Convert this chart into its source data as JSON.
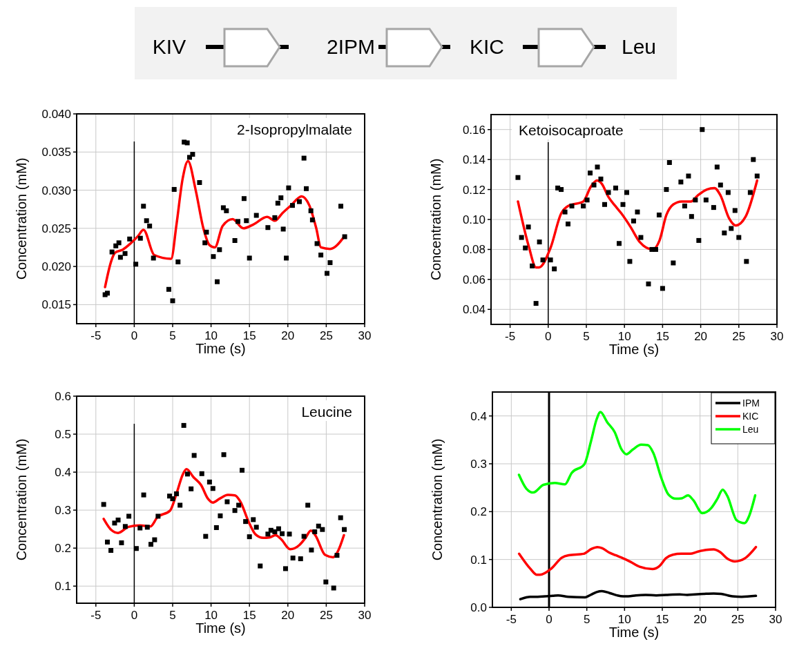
{
  "chart_data": [
    {
      "type": "other",
      "annotations": [
        "KIV",
        "2IPM",
        "KIC",
        "Leu"
      ]
    },
    {
      "type": "scatter",
      "title": "2-Isopropylmalate",
      "xlabel": "Time (s)",
      "ylabel": "Concentration (mM)",
      "xlim": [
        -7.5,
        30
      ],
      "ylim": [
        0.0125,
        0.04
      ],
      "xticks": [
        -5,
        0,
        5,
        10,
        15,
        20,
        25,
        30
      ],
      "yticks": [
        0.015,
        {
          "value": 0.02,
          "label": "0.020"
        },
        0.025,
        {
          "value": 0.03,
          "label": "0.030"
        },
        0.035,
        {
          "value": 0.04,
          "label": "0.040"
        }
      ],
      "grid": true,
      "legend": false,
      "ref_lines": [
        {
          "axis": "x",
          "value": 0,
          "color": "#000000"
        }
      ],
      "series": [
        {
          "type": "scatter",
          "marker": "square",
          "color": "#000000",
          "x": [
            -3.8,
            -3.5,
            -2.9,
            -2.4,
            -2,
            -1.8,
            -1.2,
            -0.6,
            0.2,
            0.8,
            1.2,
            1.6,
            2,
            2.5,
            4.5,
            5,
            5.2,
            5.7,
            6.5,
            6.9,
            7.2,
            7.6,
            8.5,
            9.2,
            9.4,
            10.3,
            10.8,
            11.1,
            11.6,
            12,
            13.1,
            13.5,
            14.3,
            14.6,
            15,
            15.9,
            17.4,
            18.3,
            18.7,
            19.1,
            19.4,
            19.8,
            20.1,
            20.6,
            21.5,
            22.1,
            22.4,
            23,
            23.2,
            23.8,
            24.3,
            25.1,
            25.5,
            26.9,
            27.4
          ],
          "values": [
            0.0163,
            0.0165,
            0.0219,
            0.0227,
            0.0231,
            0.0212,
            0.0217,
            0.0236,
            0.0203,
            0.0237,
            0.0279,
            0.026,
            0.0253,
            0.0211,
            0.017,
            0.0155,
            0.0301,
            0.0206,
            0.0363,
            0.0362,
            0.0343,
            0.0347,
            0.031,
            0.0231,
            0.0245,
            0.0213,
            0.018,
            0.0222,
            0.0277,
            0.0273,
            0.0234,
            0.0259,
            0.0289,
            0.026,
            0.0211,
            0.0267,
            0.0251,
            0.0264,
            0.0283,
            0.029,
            0.0249,
            0.0211,
            0.0303,
            0.028,
            0.0285,
            0.0342,
            0.0302,
            0.0273,
            0.0261,
            0.023,
            0.0215,
            0.0191,
            0.0205,
            0.0279,
            0.0239
          ]
        },
        {
          "type": "line",
          "color": "#ff0000",
          "x": [
            -3.8,
            -3,
            -2.5,
            -1.5,
            -0.5,
            0.5,
            1.2,
            2.6,
            4.8,
            5.5,
            6.3,
            7,
            8,
            9,
            9.8,
            10.5,
            11.5,
            12.8,
            14.2,
            15.5,
            17.3,
            18.3,
            19.3,
            20.4,
            21.8,
            22.8,
            23.7,
            24.3,
            25.5,
            27.4
          ],
          "values": [
            0.0173,
            0.0207,
            0.0218,
            0.0222,
            0.023,
            0.024,
            0.0248,
            0.0215,
            0.021,
            0.0255,
            0.0315,
            0.0338,
            0.03,
            0.025,
            0.0228,
            0.0225,
            0.0253,
            0.0262,
            0.025,
            0.0255,
            0.0265,
            0.026,
            0.027,
            0.028,
            0.0292,
            0.028,
            0.025,
            0.0225,
            0.0223,
            0.024
          ]
        }
      ]
    },
    {
      "type": "scatter",
      "title": "Ketoisocaproate",
      "xlabel": "Time (s)",
      "ylabel": "Concentration (mM)",
      "xlim": [
        -7.5,
        30
      ],
      "ylim": [
        0.03,
        0.17
      ],
      "xticks": [
        -5,
        0,
        5,
        10,
        15,
        20,
        25,
        30
      ],
      "yticks": [
        0.04,
        0.06,
        0.08,
        {
          "value": 0.1,
          "label": "0.10"
        },
        0.12,
        0.14,
        0.16
      ],
      "grid": true,
      "legend": false,
      "ref_lines": [
        {
          "axis": "x",
          "value": 0,
          "color": "#000000"
        }
      ],
      "series": [
        {
          "type": "scatter",
          "marker": "square",
          "color": "#000000",
          "x": [
            -3.97,
            -3.5,
            -3,
            -2.6,
            -2.1,
            -1.6,
            -1.15,
            -0.7,
            0.3,
            0.8,
            1.25,
            1.7,
            2.2,
            2.6,
            3.1,
            4.6,
            5.1,
            5.5,
            6,
            6.45,
            6.9,
            7.4,
            7.9,
            8.85,
            9.3,
            9.8,
            10.3,
            10.7,
            11.2,
            11.7,
            12.15,
            13.15,
            13.6,
            14.1,
            14.55,
            15,
            15.5,
            15.9,
            16.4,
            17.4,
            17.9,
            18.4,
            18.8,
            19.3,
            19.75,
            20.2,
            20.7,
            21.7,
            22.15,
            22.6,
            23.1,
            23.6,
            24,
            24.5,
            25,
            26,
            26.5,
            26.9,
            27.4
          ],
          "values": [
            0.128,
            0.088,
            0.081,
            0.095,
            0.069,
            0.044,
            0.085,
            0.073,
            0.073,
            0.067,
            0.121,
            0.12,
            0.105,
            0.097,
            0.109,
            0.109,
            0.113,
            0.131,
            0.123,
            0.135,
            0.127,
            0.11,
            0.118,
            0.121,
            0.084,
            0.11,
            0.118,
            0.072,
            0.099,
            0.105,
            0.088,
            0.057,
            0.08,
            0.08,
            0.103,
            0.054,
            0.12,
            0.138,
            0.071,
            0.125,
            0.109,
            0.129,
            0.102,
            0.113,
            0.086,
            0.16,
            0.113,
            0.108,
            0.135,
            0.123,
            0.091,
            0.118,
            0.094,
            0.106,
            0.088,
            0.072,
            0.118,
            0.14,
            0.129
          ]
        },
        {
          "type": "line",
          "color": "#ff0000",
          "x": [
            -3.97,
            -2.55,
            -1.6,
            -1.2,
            0.3,
            1.7,
            2.6,
            4.6,
            5.6,
            6.4,
            7,
            7.9,
            8.8,
            9.6,
            10.8,
            12,
            13.7,
            14.6,
            15.5,
            16.4,
            17.5,
            18.7,
            19.6,
            20.8,
            21.8,
            22.6,
            23.7,
            24.6,
            25.9,
            27.4
          ],
          "values": [
            0.112,
            0.082,
            0.068,
            0.068,
            0.081,
            0.104,
            0.109,
            0.112,
            0.122,
            0.126,
            0.124,
            0.115,
            0.109,
            0.104,
            0.095,
            0.085,
            0.08,
            0.086,
            0.103,
            0.11,
            0.112,
            0.112,
            0.116,
            0.12,
            0.121,
            0.116,
            0.101,
            0.096,
            0.102,
            0.126
          ]
        }
      ]
    },
    {
      "type": "scatter",
      "title": "Leucine",
      "xlabel": "Time (s)",
      "ylabel": "Concentration (mM)",
      "xlim": [
        -7.5,
        30
      ],
      "ylim": [
        0.055,
        0.6
      ],
      "xticks": [
        -5,
        0,
        5,
        10,
        15,
        20,
        25,
        30
      ],
      "yticks": [
        0.1,
        0.2,
        0.3,
        0.4,
        0.5,
        0.6
      ],
      "grid": true,
      "legend": false,
      "ref_lines": [
        {
          "axis": "x",
          "value": 0,
          "color": "#000000"
        }
      ],
      "series": [
        {
          "type": "scatter",
          "marker": "square",
          "color": "#000000",
          "x": [
            -3.98,
            -3.5,
            -3.04,
            -2.56,
            -2.1,
            -1.66,
            -1.17,
            -0.7,
            0.27,
            0.75,
            1.23,
            1.7,
            2.17,
            2.65,
            3.1,
            4.6,
            5,
            5.5,
            5.96,
            6.45,
            6.93,
            7.4,
            7.8,
            8.8,
            9.3,
            9.8,
            10.24,
            10.7,
            11.2,
            11.66,
            12.1,
            13.1,
            13.6,
            14.04,
            14.5,
            15,
            15.5,
            15.9,
            16.4,
            17.4,
            17.8,
            18.3,
            18.8,
            19.26,
            19.7,
            20.2,
            20.66,
            21.66,
            22.1,
            22.6,
            23.07,
            23.5,
            24,
            24.5,
            24.95,
            25.97,
            26.4,
            26.87,
            27.35
          ],
          "values": [
            0.315,
            0.216,
            0.194,
            0.266,
            0.274,
            0.214,
            0.257,
            0.284,
            0.199,
            0.253,
            0.34,
            0.255,
            0.21,
            0.222,
            0.284,
            0.337,
            0.33,
            0.343,
            0.313,
            0.523,
            0.395,
            0.356,
            0.444,
            0.396,
            0.231,
            0.374,
            0.357,
            0.254,
            0.285,
            0.446,
            0.322,
            0.299,
            0.313,
            0.405,
            0.27,
            0.23,
            0.275,
            0.255,
            0.153,
            0.237,
            0.247,
            0.243,
            0.251,
            0.238,
            0.146,
            0.237,
            0.174,
            0.172,
            0.231,
            0.313,
            0.195,
            0.243,
            0.258,
            0.249,
            0.111,
            0.095,
            0.181,
            0.28,
            0.249
          ]
        },
        {
          "type": "line",
          "color": "#ff0000",
          "x": [
            -3.98,
            -3,
            -2.1,
            -0.75,
            0.75,
            2.1,
            3,
            4.67,
            5.57,
            6.3,
            6.8,
            7.7,
            8.7,
            9.6,
            10.24,
            11.1,
            12.2,
            13.1,
            13.8,
            14.9,
            15.8,
            16.8,
            17.6,
            18.4,
            19.1,
            20.3,
            21.5,
            22.3,
            23,
            23.6,
            24.85,
            25.9,
            26.5,
            27.3
          ],
          "values": [
            0.277,
            0.248,
            0.24,
            0.256,
            0.26,
            0.257,
            0.281,
            0.299,
            0.348,
            0.393,
            0.408,
            0.387,
            0.366,
            0.33,
            0.32,
            0.33,
            0.34,
            0.339,
            0.323,
            0.269,
            0.236,
            0.227,
            0.228,
            0.234,
            0.224,
            0.197,
            0.208,
            0.227,
            0.246,
            0.233,
            0.182,
            0.176,
            0.191,
            0.234
          ]
        }
      ]
    },
    {
      "type": "line",
      "xlabel": "Time (s)",
      "ylabel": "Concentration (mM)",
      "xlim": [
        -7.5,
        30
      ],
      "ylim": [
        0,
        0.45
      ],
      "xticks": [
        -5,
        0,
        5,
        10,
        15,
        20,
        25,
        30
      ],
      "yticks": [
        {
          "value": 0,
          "label": "0.0"
        },
        0.1,
        0.2,
        0.3,
        0.4
      ],
      "grid": true,
      "legend": "top right",
      "ref_lines": [
        {
          "axis": "x",
          "value": 0,
          "color": "#000000"
        }
      ],
      "series": [
        {
          "name": "IPM",
          "type": "line",
          "color": "#000000",
          "x": [
            -3.8,
            -3,
            -2.5,
            -1.5,
            -0.5,
            0.5,
            1.2,
            2.6,
            4.8,
            5.5,
            6.3,
            7,
            8,
            9,
            9.8,
            10.5,
            11.5,
            12.8,
            14.2,
            15.5,
            17.3,
            18.3,
            19.3,
            20.4,
            21.8,
            22.8,
            23.7,
            24.3,
            25.5,
            27.4
          ],
          "values": [
            0.017,
            0.021,
            0.022,
            0.022,
            0.023,
            0.024,
            0.025,
            0.022,
            0.021,
            0.026,
            0.032,
            0.034,
            0.03,
            0.025,
            0.023,
            0.023,
            0.025,
            0.026,
            0.025,
            0.026,
            0.027,
            0.026,
            0.027,
            0.028,
            0.029,
            0.028,
            0.025,
            0.023,
            0.022,
            0.024
          ]
        },
        {
          "name": "KIC",
          "type": "line",
          "color": "#ff0000",
          "x": [
            -3.97,
            -2.55,
            -1.6,
            -1.2,
            0.3,
            1.7,
            2.6,
            4.6,
            5.6,
            6.4,
            7,
            7.9,
            8.8,
            9.6,
            10.8,
            12,
            13.7,
            14.6,
            15.5,
            16.4,
            17.5,
            18.7,
            19.6,
            20.8,
            21.8,
            22.6,
            23.7,
            24.6,
            25.9,
            27.4
          ],
          "values": [
            0.112,
            0.082,
            0.068,
            0.068,
            0.081,
            0.104,
            0.109,
            0.112,
            0.122,
            0.126,
            0.124,
            0.115,
            0.109,
            0.104,
            0.095,
            0.085,
            0.08,
            0.086,
            0.103,
            0.11,
            0.112,
            0.112,
            0.116,
            0.12,
            0.121,
            0.116,
            0.101,
            0.096,
            0.102,
            0.126
          ]
        },
        {
          "name": "Leu",
          "type": "line",
          "color": "#00ff00",
          "x": [
            -3.98,
            -3,
            -2.1,
            -0.75,
            0.75,
            2.1,
            3,
            4.67,
            5.57,
            6.3,
            6.8,
            7.7,
            8.7,
            9.6,
            10.24,
            11.1,
            12.2,
            13.1,
            13.8,
            14.9,
            15.8,
            16.8,
            17.6,
            18.4,
            19.1,
            20.3,
            21.5,
            22.3,
            23,
            23.6,
            24.85,
            25.9,
            26.5,
            27.3
          ],
          "values": [
            0.277,
            0.248,
            0.24,
            0.256,
            0.26,
            0.257,
            0.281,
            0.299,
            0.348,
            0.393,
            0.408,
            0.387,
            0.366,
            0.33,
            0.32,
            0.33,
            0.34,
            0.339,
            0.323,
            0.269,
            0.236,
            0.227,
            0.228,
            0.234,
            0.224,
            0.197,
            0.208,
            0.227,
            0.246,
            0.233,
            0.182,
            0.176,
            0.191,
            0.234
          ]
        }
      ]
    }
  ]
}
